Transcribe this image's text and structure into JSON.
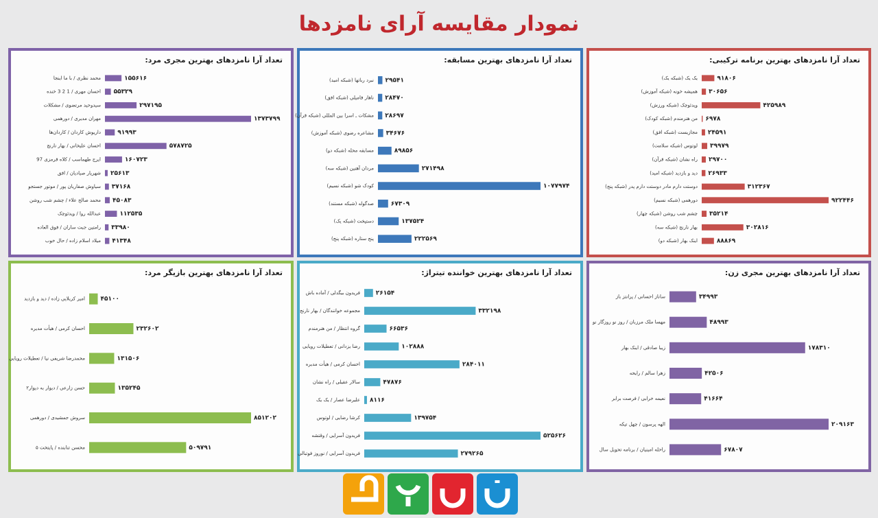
{
  "page_title": "نمودار مقایسه آرای نامزدها",
  "chart_data": [
    {
      "type": "bar",
      "orientation": "horizontal",
      "color": "#7f62a8",
      "title": "تعداد آرا نامزدهای بهترین مجری مرد:",
      "categories": [
        "محمد نظری / با ما اینجا",
        "احسان مهری / 1 2 3 خنده",
        "سیدوحید مرتضوی / مشکلات",
        "مهران مدیری / دورهمی",
        "داریوش کاردان / کاردان‌ها",
        "احسان علیخانی / بهار نارنج",
        "ایرج طهماسب / کلاه قرمزی 97",
        "شهریار صیادیان / افق",
        "سیاوش صفاریان پور / موتور جستجو",
        "محمد صالح علاء / چشم شب روشن",
        "عبدالله روا / ویدئوچک",
        "رامتین جبت ساران / فوق العاده",
        "میلاد اسلام زاده / حال خوب"
      ],
      "values": [
        155616,
        55329,
        297195,
        1373799,
        91993,
        578725,
        160723,
        25613,
        37168,
        45083,
        112535,
        33980,
        41348
      ],
      "value_labels": [
        "۱۵۵۶۱۶",
        "۵۵۳۲۹",
        "۲۹۷۱۹۵",
        "۱۳۷۳۷۹۹",
        "۹۱۹۹۳",
        "۵۷۸۷۲۵",
        "۱۶۰۷۲۳",
        "۲۵۶۱۳",
        "۳۷۱۶۸",
        "۴۵۰۸۳",
        "۱۱۲۵۳۵",
        "۳۳۹۸۰",
        "۴۱۳۴۸"
      ]
    },
    {
      "type": "bar",
      "orientation": "horizontal",
      "color": "#3d78ba",
      "title": "تعداد آرا نامزدهای بهترین مسابقه:",
      "categories": [
        "نبرد رباتها (شبکه امید)",
        "ناهار فامیلی (شبکه افق)",
        "مشکات ـ اسرا بین المللی (شبکه قرآن)",
        "مشاعره رضوی (شبکه آموزش)",
        "مسابقه محله (شبکه دو)",
        "مردان آهنین (شبکه سه)",
        "کودک شو (شبکه نسیم)",
        "صدگوله (شبکه مستند)",
        "دستپخت (شبکه یک)",
        "پنج ستاره (شبکه پنج)"
      ],
      "values": [
        29541,
        28470,
        28697,
        34676,
        89856,
        271498,
        1077974,
        67309,
        137524,
        222569
      ],
      "value_labels": [
        "۲۹۵۴۱",
        "۲۸۴۷۰",
        "۲۸۶۹۷",
        "۳۴۶۷۶",
        "۸۹۸۵۶",
        "۲۷۱۴۹۸",
        "۱۰۷۷۹۷۴",
        "۶۷۳۰۹",
        "۱۳۷۵۲۴",
        "۲۲۲۵۶۹"
      ]
    },
    {
      "type": "bar",
      "orientation": "horizontal",
      "color": "#c4504c",
      "title": "تعداد آرا نامزدهای بهترین برنامه ترکیبی:",
      "categories": [
        "یک یک (شبکه یک)",
        "همیشه خونه (شبکه آموزش)",
        "ویدئوچک (شبکه ورزش)",
        "من هنرمندم (شبکه کودک)",
        "مجازیست (شبکه افق)",
        "لوتوس (شبکه سلامت)",
        "راه نشان (شبکه قرآن)",
        "دید و بازدید (شبکه امید)",
        "دوستت دارم مادر دوستت دارم پدر (شبکه پنج)",
        "دورهمی (شبکه نسیم)",
        "چشم شب روشن (شبکه چهار)",
        "بهار نارنج (شبکه سه)",
        "اینک بهار (شبکه دو)"
      ],
      "values": [
        91806,
        30656,
        425989,
        6978,
        24591,
        39979,
        29700,
        26933,
        312367,
        922446,
        35214,
        302816,
        88869
      ],
      "value_labels": [
        "۹۱۸۰۶",
        "۳۰۶۵۶",
        "۴۲۵۹۸۹",
        "۶۹۷۸",
        "۲۴۵۹۱",
        "۳۹۹۷۹",
        "۲۹۷۰۰",
        "۲۶۹۳۳",
        "۳۱۲۳۶۷",
        "۹۲۲۴۴۶",
        "۳۵۲۱۴",
        "۳۰۲۸۱۶",
        "۸۸۸۶۹"
      ]
    },
    {
      "type": "bar",
      "orientation": "horizontal",
      "color": "#8dbd4f",
      "title": "تعداد آرا نامزدهای بهترین بازیگر مرد:",
      "categories": [
        "امیر کربلایی زاده / دید و بازدید",
        "احسان کرمی / هیأت مدیره",
        "محمدرضا شریفی نیا / تعطیلات رویایی",
        "حسن زارعی / دیوار به دیوار۲",
        "سروش جمشیدی / دورهمی",
        "محسن تنابنده / پایتخت ۵"
      ],
      "values": [
        45100,
        232602,
        131506,
        135245,
        851202,
        509791
      ],
      "value_labels": [
        "۴۵۱۰۰",
        "۲۳۲۶۰۲",
        "۱۳۱۵۰۶",
        "۱۳۵۲۴۵",
        "۸۵۱۲۰۲",
        "۵۰۹۷۹۱"
      ]
    },
    {
      "type": "bar",
      "orientation": "horizontal",
      "color": "#4aaac8",
      "title": "تعداد آرا نامزدهای بهترین خواننده تیتراژ:",
      "categories": [
        "فریدون بیگدلی / آماده باش",
        "مجموعه خوانندگان / بهار نارنج",
        "گروه انتظار / من هنرمندم",
        "رضا یزدانی / تعطیلات رویایی",
        "احسان کرمی / هیأت مدیره",
        "سالار عقیلی / راه نشان",
        "علیرضا عصار / یک یک",
        "کرشا رضایی / لوتوس",
        "فریدون آسرایی / وقتشه",
        "فریدون آسرایی / نوروز فوتبالی"
      ],
      "values": [
        26154,
        332198,
        66536,
        102888,
        284011,
        47876,
        8116,
        139754,
        525626,
        279265
      ],
      "value_labels": [
        "۲۶۱۵۴",
        "۳۳۲۱۹۸",
        "۶۶۵۳۶",
        "۱۰۲۸۸۸",
        "۲۸۴۰۱۱",
        "۴۷۸۷۶",
        "۸۱۱۶",
        "۱۳۹۷۵۴",
        "۵۲۵۶۲۶",
        "۲۷۹۲۶۵"
      ]
    },
    {
      "type": "bar",
      "orientation": "horizontal",
      "color": "#8064a4",
      "title": "تعداد آرا نامزدهای بهترین مجری زن:",
      "categories": [
        "ساناز احسانی / پرانتز باز",
        "مهسا ملک مرزبان / روز نو روزگار نو",
        "زیبا صادقی / اینک بهار",
        "زهرا سالم / رایحه",
        "نعیمه خرابی / فرصت برابر",
        "الهه پرسون / چهل تیکه",
        "راحله امینیان / برنامه تحویل سال"
      ],
      "values": [
        34993,
        48993,
        178310,
        42506,
        41664,
        209163,
        67807
      ],
      "value_labels": [
        "۳۴۹۹۳",
        "۴۸۹۹۳",
        "۱۷۸۳۱۰",
        "۴۲۵۰۶",
        "۴۱۶۶۴",
        "۲۰۹۱۶۳",
        "۶۷۸۰۷"
      ]
    }
  ]
}
